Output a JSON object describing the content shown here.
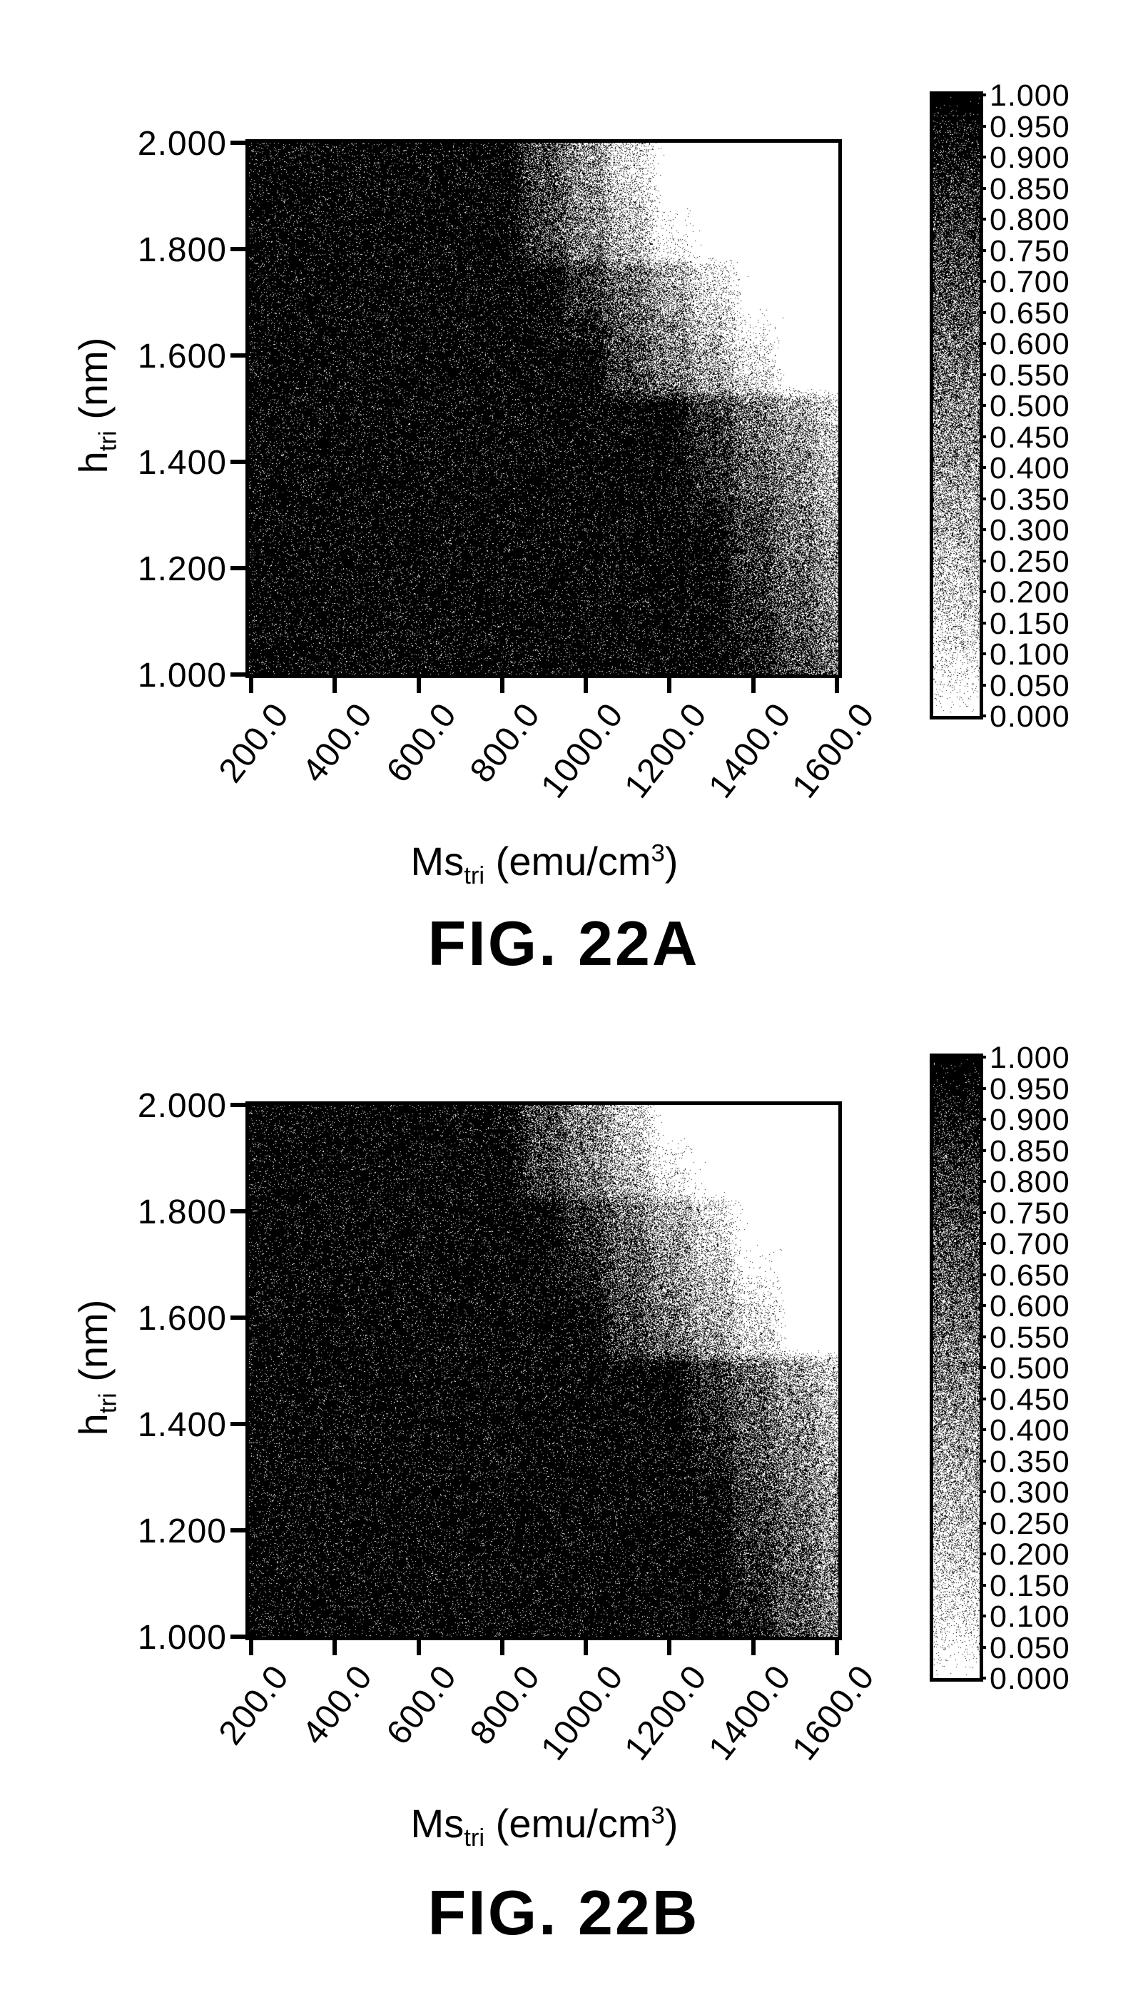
{
  "page": {
    "background": "#ffffff",
    "ink": "#000000"
  },
  "figures": [
    {
      "caption": "FIG. 22A",
      "x_axis": {
        "label_prefix": "Ms",
        "label_sub": "tri",
        "label_mid": " (emu/cm",
        "label_sup": "3",
        "label_suffix": ")",
        "ticks": [
          "200.0",
          "400.0",
          "600.0",
          "800.0",
          "1000.0",
          "1200.0",
          "1400.0",
          "1600.0"
        ]
      },
      "y_axis": {
        "label_prefix": "h",
        "label_sub": "tri",
        "label_suffix": " (nm)",
        "ticks": [
          "2.000",
          "1.800",
          "1.600",
          "1.400",
          "1.200",
          "1.000"
        ]
      },
      "colorbar": {
        "labels": [
          "1.000",
          "0.950",
          "0.900",
          "0.850",
          "0.800",
          "0.750",
          "0.700",
          "0.650",
          "0.600",
          "0.550",
          "0.500",
          "0.450",
          "0.400",
          "0.350",
          "0.300",
          "0.250",
          "0.200",
          "0.150",
          "0.100",
          "0.050",
          "0.000"
        ],
        "top_color": "#000000",
        "bottom_color": "#ffffff"
      }
    },
    {
      "caption": "FIG. 22B",
      "x_axis": {
        "label_prefix": "Ms",
        "label_sub": "tri",
        "label_mid": " (emu/cm",
        "label_sup": "3",
        "label_suffix": ")",
        "ticks": [
          "200.0",
          "400.0",
          "600.0",
          "800.0",
          "1000.0",
          "1200.0",
          "1400.0",
          "1600.0"
        ]
      },
      "y_axis": {
        "label_prefix": "h",
        "label_sub": "tri",
        "label_suffix": " (nm)",
        "ticks": [
          "2.000",
          "1.800",
          "1.600",
          "1.400",
          "1.200",
          "1.000"
        ]
      },
      "colorbar": {
        "labels": [
          "1.000",
          "0.950",
          "0.900",
          "0.850",
          "0.800",
          "0.750",
          "0.700",
          "0.650",
          "0.600",
          "0.550",
          "0.500",
          "0.450",
          "0.400",
          "0.350",
          "0.300",
          "0.250",
          "0.200",
          "0.150",
          "0.100",
          "0.050",
          "0.000"
        ],
        "top_color": "#000000",
        "bottom_color": "#ffffff"
      }
    }
  ],
  "chart_data": [
    {
      "type": "heatmap",
      "title": "FIG. 22A",
      "xlabel": "Mstri (emu/cm3)",
      "ylabel": "htri (nm)",
      "x_range": [
        200,
        1600
      ],
      "y_range": [
        1.0,
        2.0
      ],
      "value_range": [
        0.0,
        1.0
      ],
      "colormap": "grayscale, 1.0 = black, 0.0 = white",
      "legend_position": "right colorbar, labels 1.000 to 0.000 step 0.050",
      "x": [
        200,
        300,
        400,
        500,
        600,
        700,
        800,
        900,
        1000,
        1100,
        1200,
        1300,
        1400,
        1500,
        1600
      ],
      "y": [
        2.0,
        1.95,
        1.9,
        1.85,
        1.8,
        1.75,
        1.7,
        1.65,
        1.6,
        1.55,
        1.5,
        1.45,
        1.4,
        1.35,
        1.3,
        1.25,
        1.2,
        1.15,
        1.1,
        1.05,
        1.0
      ],
      "values": [
        [
          0.95,
          0.95,
          0.95,
          0.95,
          0.95,
          0.95,
          0.95,
          0.69,
          0.42,
          0.16,
          0.0,
          0.0,
          0.0,
          0.0,
          0.0
        ],
        [
          0.95,
          0.95,
          0.95,
          0.95,
          0.95,
          0.95,
          0.95,
          0.7,
          0.44,
          0.17,
          0.0,
          0.0,
          0.0,
          0.0,
          0.0
        ],
        [
          0.95,
          0.95,
          0.95,
          0.95,
          0.95,
          0.95,
          0.95,
          0.73,
          0.47,
          0.22,
          0.0,
          0.0,
          0.0,
          0.0,
          0.0
        ],
        [
          0.95,
          0.95,
          0.95,
          0.95,
          0.95,
          0.95,
          0.95,
          0.76,
          0.51,
          0.26,
          0.02,
          0.0,
          0.0,
          0.0,
          0.0
        ],
        [
          0.95,
          0.95,
          0.95,
          0.95,
          0.95,
          0.95,
          0.95,
          0.79,
          0.55,
          0.3,
          0.06,
          0.0,
          0.0,
          0.0,
          0.0
        ],
        [
          0.95,
          0.95,
          0.95,
          0.95,
          0.95,
          0.95,
          0.95,
          0.95,
          0.79,
          0.57,
          0.34,
          0.11,
          0.0,
          0.0,
          0.0
        ],
        [
          0.95,
          0.95,
          0.95,
          0.95,
          0.95,
          0.95,
          0.95,
          0.95,
          0.84,
          0.62,
          0.4,
          0.18,
          0.0,
          0.0,
          0.0
        ],
        [
          0.95,
          0.95,
          0.95,
          0.95,
          0.95,
          0.95,
          0.95,
          0.95,
          0.9,
          0.68,
          0.46,
          0.25,
          0.03,
          0.0,
          0.0
        ],
        [
          0.95,
          0.95,
          0.95,
          0.95,
          0.95,
          0.95,
          0.95,
          0.95,
          0.95,
          0.74,
          0.53,
          0.32,
          0.11,
          0.0,
          0.0
        ],
        [
          0.95,
          0.95,
          0.95,
          0.95,
          0.95,
          0.95,
          0.95,
          0.95,
          0.95,
          0.78,
          0.58,
          0.37,
          0.17,
          0.0,
          0.0
        ],
        [
          0.95,
          0.95,
          0.95,
          0.95,
          0.95,
          0.95,
          0.95,
          0.95,
          0.95,
          0.95,
          0.95,
          0.77,
          0.57,
          0.36,
          0.16
        ],
        [
          0.95,
          0.95,
          0.95,
          0.95,
          0.95,
          0.95,
          0.95,
          0.95,
          0.95,
          0.95,
          0.95,
          0.8,
          0.6,
          0.41,
          0.21
        ],
        [
          0.95,
          0.95,
          0.95,
          0.95,
          0.95,
          0.95,
          0.95,
          0.95,
          0.95,
          0.95,
          0.95,
          0.83,
          0.64,
          0.45,
          0.25
        ],
        [
          0.95,
          0.95,
          0.95,
          0.95,
          0.95,
          0.95,
          0.95,
          0.95,
          0.95,
          0.95,
          0.95,
          0.87,
          0.68,
          0.49,
          0.3
        ],
        [
          0.95,
          0.95,
          0.95,
          0.95,
          0.95,
          0.95,
          0.95,
          0.95,
          0.95,
          0.95,
          0.95,
          0.91,
          0.73,
          0.54,
          0.35
        ],
        [
          0.95,
          0.95,
          0.95,
          0.95,
          0.95,
          0.95,
          0.95,
          0.95,
          0.95,
          0.95,
          0.95,
          0.95,
          0.77,
          0.58,
          0.4
        ],
        [
          0.95,
          0.95,
          0.95,
          0.95,
          0.95,
          0.95,
          0.95,
          0.95,
          0.95,
          0.95,
          0.95,
          0.95,
          0.8,
          0.62,
          0.44
        ],
        [
          0.95,
          0.95,
          0.95,
          0.95,
          0.95,
          0.95,
          0.95,
          0.95,
          0.95,
          0.95,
          0.95,
          0.95,
          0.83,
          0.65,
          0.48
        ],
        [
          0.95,
          0.95,
          0.95,
          0.95,
          0.95,
          0.95,
          0.95,
          0.95,
          0.95,
          0.95,
          0.95,
          0.95,
          0.86,
          0.68,
          0.51
        ],
        [
          0.95,
          0.95,
          0.95,
          0.95,
          0.95,
          0.95,
          0.95,
          0.95,
          0.95,
          0.95,
          0.95,
          0.95,
          0.88,
          0.71,
          0.54
        ],
        [
          0.95,
          0.95,
          0.95,
          0.95,
          0.95,
          0.95,
          0.95,
          0.95,
          0.95,
          0.95,
          0.95,
          0.95,
          0.91,
          0.74,
          0.57
        ]
      ]
    },
    {
      "type": "heatmap",
      "title": "FIG. 22B",
      "xlabel": "Mstri (emu/cm3)",
      "ylabel": "htri (nm)",
      "x_range": [
        200,
        1600
      ],
      "y_range": [
        1.0,
        2.0
      ],
      "value_range": [
        0.0,
        1.0
      ],
      "colormap": "grayscale, 1.0 = black, 0.0 = white",
      "legend_position": "right colorbar, labels 1.000 to 0.000 step 0.050",
      "x": [
        200,
        300,
        400,
        500,
        600,
        700,
        800,
        900,
        1000,
        1100,
        1200,
        1300,
        1400,
        1500,
        1600
      ],
      "y": [
        2.0,
        1.95,
        1.9,
        1.85,
        1.8,
        1.75,
        1.7,
        1.65,
        1.6,
        1.55,
        1.5,
        1.45,
        1.4,
        1.35,
        1.3,
        1.25,
        1.2,
        1.15,
        1.1,
        1.05,
        1.0
      ],
      "values": [
        [
          0.95,
          0.95,
          0.95,
          0.95,
          0.95,
          0.95,
          0.95,
          0.7,
          0.45,
          0.2,
          0.0,
          0.0,
          0.0,
          0.0,
          0.0
        ],
        [
          0.95,
          0.95,
          0.95,
          0.95,
          0.95,
          0.95,
          0.95,
          0.73,
          0.49,
          0.24,
          0.0,
          0.0,
          0.0,
          0.0,
          0.0
        ],
        [
          0.95,
          0.95,
          0.95,
          0.95,
          0.95,
          0.95,
          0.95,
          0.76,
          0.52,
          0.28,
          0.05,
          0.0,
          0.0,
          0.0,
          0.0
        ],
        [
          0.95,
          0.95,
          0.95,
          0.95,
          0.95,
          0.95,
          0.95,
          0.79,
          0.56,
          0.32,
          0.09,
          0.0,
          0.0,
          0.0,
          0.0
        ],
        [
          0.95,
          0.95,
          0.95,
          0.95,
          0.95,
          0.95,
          0.95,
          0.95,
          0.8,
          0.57,
          0.35,
          0.13,
          0.0,
          0.0,
          0.0
        ],
        [
          0.95,
          0.95,
          0.95,
          0.95,
          0.95,
          0.95,
          0.95,
          0.95,
          0.83,
          0.62,
          0.4,
          0.18,
          0.0,
          0.0,
          0.0
        ],
        [
          0.95,
          0.95,
          0.95,
          0.95,
          0.95,
          0.95,
          0.95,
          0.95,
          0.87,
          0.65,
          0.44,
          0.23,
          0.02,
          0.0,
          0.0
        ],
        [
          0.95,
          0.95,
          0.95,
          0.95,
          0.95,
          0.95,
          0.95,
          0.95,
          0.91,
          0.7,
          0.5,
          0.29,
          0.08,
          0.0,
          0.0
        ],
        [
          0.95,
          0.95,
          0.95,
          0.95,
          0.95,
          0.95,
          0.95,
          0.95,
          0.95,
          0.75,
          0.55,
          0.34,
          0.14,
          0.0,
          0.0
        ],
        [
          0.95,
          0.95,
          0.95,
          0.95,
          0.95,
          0.95,
          0.95,
          0.95,
          0.95,
          0.79,
          0.59,
          0.4,
          0.2,
          0.0,
          0.0
        ],
        [
          0.95,
          0.95,
          0.95,
          0.95,
          0.95,
          0.95,
          0.95,
          0.95,
          0.95,
          0.95,
          0.95,
          0.78,
          0.58,
          0.39,
          0.19
        ],
        [
          0.95,
          0.95,
          0.95,
          0.95,
          0.95,
          0.95,
          0.95,
          0.95,
          0.95,
          0.95,
          0.95,
          0.82,
          0.63,
          0.44,
          0.25
        ],
        [
          0.95,
          0.95,
          0.95,
          0.95,
          0.95,
          0.95,
          0.95,
          0.95,
          0.95,
          0.95,
          0.95,
          0.85,
          0.66,
          0.47,
          0.28
        ],
        [
          0.95,
          0.95,
          0.95,
          0.95,
          0.95,
          0.95,
          0.95,
          0.95,
          0.95,
          0.95,
          0.95,
          0.89,
          0.7,
          0.51,
          0.32
        ],
        [
          0.95,
          0.95,
          0.95,
          0.95,
          0.95,
          0.95,
          0.95,
          0.95,
          0.95,
          0.95,
          0.95,
          0.93,
          0.74,
          0.55,
          0.36
        ],
        [
          0.95,
          0.95,
          0.95,
          0.95,
          0.95,
          0.95,
          0.95,
          0.95,
          0.95,
          0.95,
          0.95,
          0.95,
          0.78,
          0.59,
          0.4
        ],
        [
          0.95,
          0.95,
          0.95,
          0.95,
          0.95,
          0.95,
          0.95,
          0.95,
          0.95,
          0.95,
          0.95,
          0.95,
          0.81,
          0.62,
          0.43
        ],
        [
          0.95,
          0.95,
          0.95,
          0.95,
          0.95,
          0.95,
          0.95,
          0.95,
          0.95,
          0.95,
          0.95,
          0.95,
          0.84,
          0.65,
          0.46
        ],
        [
          0.95,
          0.95,
          0.95,
          0.95,
          0.95,
          0.95,
          0.95,
          0.95,
          0.95,
          0.95,
          0.95,
          0.95,
          0.86,
          0.67,
          0.48
        ],
        [
          0.95,
          0.95,
          0.95,
          0.95,
          0.95,
          0.95,
          0.95,
          0.95,
          0.95,
          0.95,
          0.95,
          0.95,
          0.89,
          0.7,
          0.51
        ],
        [
          0.95,
          0.95,
          0.95,
          0.95,
          0.95,
          0.95,
          0.95,
          0.95,
          0.95,
          0.95,
          0.95,
          0.95,
          0.92,
          0.73,
          0.54
        ]
      ]
    }
  ]
}
